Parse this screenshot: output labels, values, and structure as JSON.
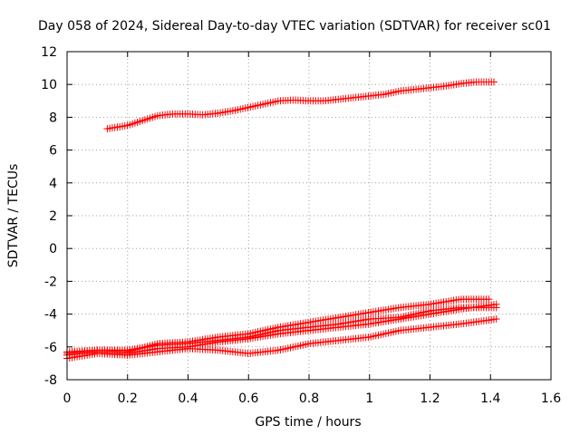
{
  "chart_data": {
    "type": "scatter",
    "title": "Day 058 of 2024, Sidereal Day-to-day VTEC variation (SDTVAR) for receiver sc01",
    "xlabel": "GPS time / hours",
    "ylabel": "SDTVAR / TECUs",
    "xlim": [
      0,
      1.6
    ],
    "ylim": [
      -8,
      12
    ],
    "x_ticks": [
      "0",
      "0.2",
      "0.4",
      "0.6",
      "0.8",
      "1",
      "1.2",
      "1.4",
      "1.6"
    ],
    "y_ticks": [
      "-8",
      "-6",
      "-4",
      "-2",
      "0",
      "2",
      "4",
      "6",
      "8",
      "10",
      "12"
    ],
    "grid": true,
    "marker": "+",
    "color": "#ff0000",
    "series": [
      {
        "name": "track-upper",
        "x_start": 0.133,
        "x_end": 1.417,
        "step": 0.0083,
        "knots": [
          [
            0.133,
            7.3
          ],
          [
            0.2,
            7.5
          ],
          [
            0.25,
            7.8
          ],
          [
            0.3,
            8.1
          ],
          [
            0.35,
            8.2
          ],
          [
            0.4,
            8.2
          ],
          [
            0.45,
            8.15
          ],
          [
            0.5,
            8.25
          ],
          [
            0.55,
            8.4
          ],
          [
            0.6,
            8.6
          ],
          [
            0.65,
            8.8
          ],
          [
            0.7,
            9.0
          ],
          [
            0.75,
            9.05
          ],
          [
            0.8,
            9.0
          ],
          [
            0.85,
            9.0
          ],
          [
            0.9,
            9.1
          ],
          [
            0.95,
            9.2
          ],
          [
            1.0,
            9.3
          ],
          [
            1.05,
            9.4
          ],
          [
            1.1,
            9.6
          ],
          [
            1.15,
            9.7
          ],
          [
            1.2,
            9.8
          ],
          [
            1.25,
            9.9
          ],
          [
            1.3,
            10.05
          ],
          [
            1.35,
            10.15
          ],
          [
            1.417,
            10.15
          ]
        ]
      },
      {
        "name": "track-a",
        "x_start": 0.0,
        "x_end": 1.4,
        "step": 0.0083,
        "knots": [
          [
            0.0,
            -6.4
          ],
          [
            0.1,
            -6.2
          ],
          [
            0.2,
            -6.3
          ],
          [
            0.3,
            -5.8
          ],
          [
            0.4,
            -5.7
          ],
          [
            0.5,
            -5.4
          ],
          [
            0.6,
            -5.2
          ],
          [
            0.7,
            -4.8
          ],
          [
            0.8,
            -4.5
          ],
          [
            0.9,
            -4.2
          ],
          [
            1.0,
            -3.9
          ],
          [
            1.1,
            -3.6
          ],
          [
            1.2,
            -3.4
          ],
          [
            1.3,
            -3.1
          ],
          [
            1.4,
            -3.1
          ]
        ]
      },
      {
        "name": "track-b",
        "x_start": 0.0,
        "x_end": 1.42,
        "step": 0.0083,
        "knots": [
          [
            0.0,
            -6.5
          ],
          [
            0.1,
            -6.3
          ],
          [
            0.2,
            -6.4
          ],
          [
            0.3,
            -6.1
          ],
          [
            0.4,
            -6.0
          ],
          [
            0.5,
            -5.7
          ],
          [
            0.6,
            -5.5
          ],
          [
            0.7,
            -5.2
          ],
          [
            0.8,
            -5.0
          ],
          [
            0.9,
            -4.8
          ],
          [
            1.0,
            -4.6
          ],
          [
            1.1,
            -4.3
          ],
          [
            1.2,
            -4.0
          ],
          [
            1.3,
            -3.7
          ],
          [
            1.42,
            -3.4
          ]
        ]
      },
      {
        "name": "track-c",
        "x_start": 0.0,
        "x_end": 1.42,
        "step": 0.0083,
        "knots": [
          [
            0.0,
            -6.3
          ],
          [
            0.1,
            -6.2
          ],
          [
            0.2,
            -6.2
          ],
          [
            0.3,
            -5.9
          ],
          [
            0.4,
            -5.8
          ],
          [
            0.5,
            -5.6
          ],
          [
            0.6,
            -5.4
          ],
          [
            0.7,
            -5.0
          ],
          [
            0.8,
            -4.8
          ],
          [
            0.9,
            -4.6
          ],
          [
            1.0,
            -4.3
          ],
          [
            1.1,
            -4.2
          ],
          [
            1.2,
            -3.8
          ],
          [
            1.3,
            -3.6
          ],
          [
            1.42,
            -3.6
          ]
        ]
      },
      {
        "name": "track-d",
        "x_start": 0.0,
        "x_end": 1.42,
        "step": 0.0083,
        "knots": [
          [
            0.0,
            -6.7
          ],
          [
            0.1,
            -6.4
          ],
          [
            0.2,
            -6.5
          ],
          [
            0.3,
            -6.3
          ],
          [
            0.4,
            -6.1
          ],
          [
            0.5,
            -6.2
          ],
          [
            0.6,
            -6.4
          ],
          [
            0.7,
            -6.2
          ],
          [
            0.8,
            -5.8
          ],
          [
            0.9,
            -5.6
          ],
          [
            1.0,
            -5.4
          ],
          [
            1.1,
            -5.0
          ],
          [
            1.2,
            -4.8
          ],
          [
            1.3,
            -4.6
          ],
          [
            1.42,
            -4.3
          ]
        ]
      }
    ]
  }
}
